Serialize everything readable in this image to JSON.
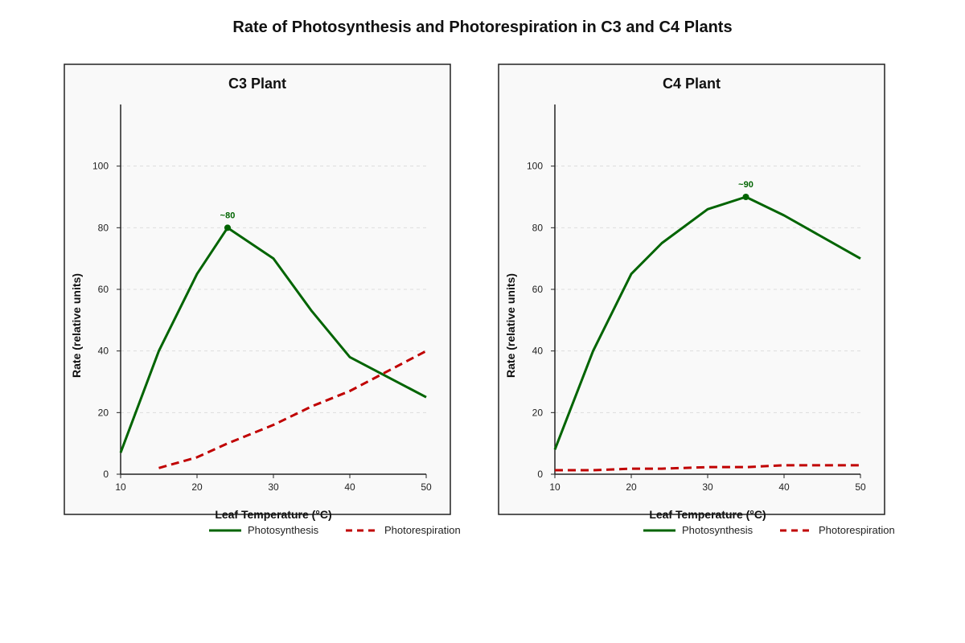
{
  "figure_title": "Rate of Photosynthesis and Photorespiration in C3 and C4 Plants",
  "colors": {
    "photosynthesis": "#006400",
    "photorespiration": "#c00000",
    "panel_bg": "#f9f9f9",
    "grid": "#dddddd"
  },
  "chart_data": [
    {
      "type": "line",
      "title": "C3 Plant",
      "xlabel": "Leaf Temperature (°C)",
      "ylabel": "Rate (relative units)",
      "xlim": [
        10,
        50
      ],
      "ylim": [
        0,
        120
      ],
      "xticks": [
        10,
        20,
        30,
        40,
        50
      ],
      "yticks": [
        0,
        20,
        40,
        60,
        80,
        100
      ],
      "grid": "horizontal-dashed",
      "legend": "bottom",
      "series": [
        {
          "name": "Photosynthesis",
          "style": "solid",
          "x": [
            10,
            15,
            20,
            24,
            30,
            35,
            40,
            50
          ],
          "y": [
            7,
            40,
            65,
            80,
            70,
            53,
            38,
            25
          ]
        },
        {
          "name": "Photorespiration",
          "style": "dashed",
          "x": [
            15,
            20,
            24,
            30,
            35,
            40,
            50
          ],
          "y": [
            2,
            5.5,
            10,
            16,
            22,
            27,
            40
          ]
        }
      ],
      "annotation": {
        "x": 24,
        "y": 80,
        "text": "~80"
      }
    },
    {
      "type": "line",
      "title": "C4 Plant",
      "xlabel": "Leaf Temperature (°C)",
      "ylabel": "Rate (relative units)",
      "xlim": [
        10,
        50
      ],
      "ylim": [
        0,
        120
      ],
      "xticks": [
        10,
        20,
        30,
        40,
        50
      ],
      "yticks": [
        0,
        20,
        40,
        60,
        80,
        100
      ],
      "grid": "horizontal-dashed",
      "legend": "bottom",
      "series": [
        {
          "name": "Photosynthesis",
          "style": "solid",
          "x": [
            10,
            15,
            20,
            24,
            30,
            35,
            40,
            50
          ],
          "y": [
            8,
            40,
            65,
            75,
            86,
            90,
            84,
            70
          ]
        },
        {
          "name": "Photorespiration",
          "style": "dashed",
          "x": [
            10,
            15,
            20,
            24,
            30,
            35,
            40,
            50
          ],
          "y": [
            1.3,
            1.3,
            1.8,
            1.8,
            2.3,
            2.3,
            2.9,
            2.9
          ]
        }
      ],
      "annotation": {
        "x": 35,
        "y": 90,
        "text": "~90"
      }
    }
  ]
}
